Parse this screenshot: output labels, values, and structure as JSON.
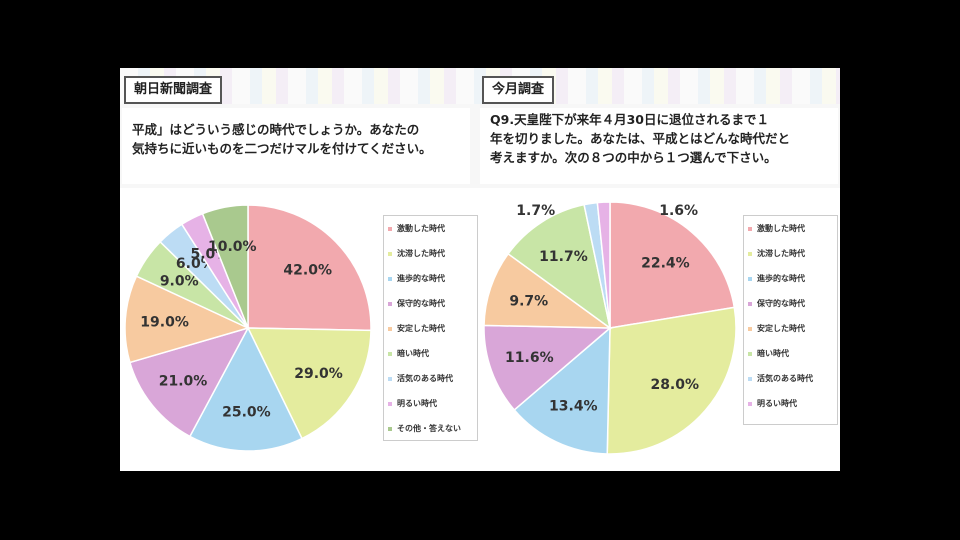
{
  "left": {
    "tag": "朝日新聞調査",
    "question_line1": "平成」はどういう感じの時代でしょうか。あなたの",
    "question_line2": "気持ちに近いものを二つだけマルを付けてください。"
  },
  "right": {
    "tag": "今月調査",
    "question_line1": "Q9.天皇陛下が来年４月30日に退位されるまで１",
    "question_line2": "年を切りました。あなたは、平成とはどんな時代だと",
    "question_line3": "考えますか。次の８つの中から１つ選んで下さい。"
  },
  "chart_data": [
    {
      "type": "pie",
      "legend": "right",
      "categories": [
        "激動した時代",
        "沈滞した時代",
        "進歩的な時代",
        "保守的な時代",
        "安定した時代",
        "暗い時代",
        "活気のある時代",
        "明るい時代",
        "その他・答えない"
      ],
      "values": [
        42.0,
        29.0,
        25.0,
        21.0,
        19.0,
        9.0,
        6.0,
        5.0,
        10.0
      ],
      "labels": [
        "42.0%",
        "29.0%",
        "25.0%",
        "21.0%",
        "19.0%",
        "9.0%",
        "6.0%",
        "5.0%",
        "10.0%"
      ],
      "colors": [
        "#f2a9ae",
        "#e4ec9e",
        "#a8d6f0",
        "#d9a6d8",
        "#f7caa0",
        "#c8e5a6",
        "#bcdcf4",
        "#e6b2e6",
        "#a9c98e"
      ]
    },
    {
      "type": "pie",
      "legend": "right",
      "categories": [
        "激動した時代",
        "沈滞した時代",
        "進歩的な時代",
        "保守的な時代",
        "安定した時代",
        "暗い時代",
        "活気のある時代",
        "明るい時代"
      ],
      "values": [
        22.4,
        28.0,
        13.4,
        11.6,
        9.7,
        11.7,
        1.7,
        1.6
      ],
      "labels": [
        "22.4%",
        "28.0%",
        "13.4%",
        "11.6%",
        "9.7%",
        "11.7%",
        "1.7%",
        "1.6%"
      ],
      "colors": [
        "#f2a9ae",
        "#e4ec9e",
        "#a8d6f0",
        "#d9a6d8",
        "#f7caa0",
        "#c8e5a6",
        "#bcdcf4",
        "#e6b2e6"
      ]
    }
  ]
}
